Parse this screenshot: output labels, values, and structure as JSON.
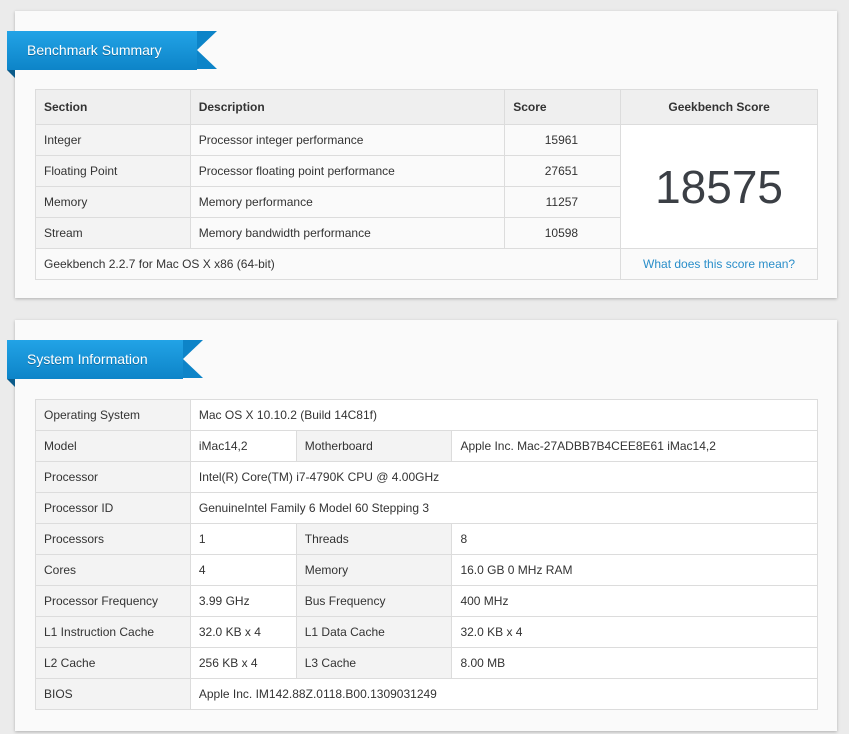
{
  "summary": {
    "title": "Benchmark Summary",
    "headers": {
      "section": "Section",
      "description": "Description",
      "score": "Score",
      "geekbench": "Geekbench Score"
    },
    "rows": [
      {
        "section": "Integer",
        "description": "Processor integer performance",
        "score": "15961"
      },
      {
        "section": "Floating Point",
        "description": "Processor floating point performance",
        "score": "27651"
      },
      {
        "section": "Memory",
        "description": "Memory performance",
        "score": "11257"
      },
      {
        "section": "Stream",
        "description": "Memory bandwidth performance",
        "score": "10598"
      }
    ],
    "geekbench_score": "18575",
    "footer_text": "Geekbench 2.2.7 for Mac OS X x86 (64-bit)",
    "footer_link": "What does this score mean?"
  },
  "sysinfo": {
    "title": "System Information",
    "os_label": "Operating System",
    "os_value": "Mac OS X 10.10.2 (Build 14C81f)",
    "model_label": "Model",
    "model_value": "iMac14,2",
    "motherboard_label": "Motherboard",
    "motherboard_value": "Apple Inc. Mac-27ADBB7B4CEE8E61 iMac14,2",
    "processor_label": "Processor",
    "processor_value": "Intel(R) Core(TM) i7-4790K CPU @ 4.00GHz",
    "processor_id_label": "Processor ID",
    "processor_id_value": "GenuineIntel Family 6 Model 60 Stepping 3",
    "processors_label": "Processors",
    "processors_value": "1",
    "threads_label": "Threads",
    "threads_value": "8",
    "cores_label": "Cores",
    "cores_value": "4",
    "memory_label": "Memory",
    "memory_value": "16.0 GB 0 MHz RAM",
    "freq_label": "Processor Frequency",
    "freq_value": "3.99 GHz",
    "bus_label": "Bus Frequency",
    "bus_value": "400 MHz",
    "l1i_label": "L1 Instruction Cache",
    "l1i_value": "32.0 KB x 4",
    "l1d_label": "L1 Data Cache",
    "l1d_value": "32.0 KB x 4",
    "l2_label": "L2 Cache",
    "l2_value": "256 KB x 4",
    "l3_label": "L3 Cache",
    "l3_value": "8.00 MB",
    "bios_label": "BIOS",
    "bios_value": "Apple Inc. IM142.88Z.0118.B00.1309031249"
  }
}
